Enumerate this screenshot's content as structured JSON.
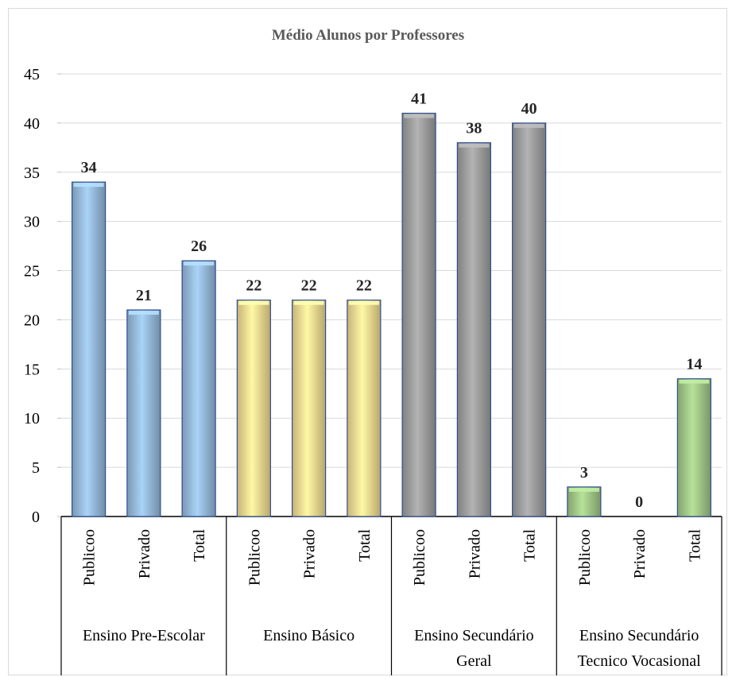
{
  "chart_data": {
    "type": "bar",
    "title": "Médio Alunos por Professores",
    "xlabel": "",
    "ylabel": "",
    "ylim": [
      0,
      45
    ],
    "yticks": [
      0,
      5,
      10,
      15,
      20,
      25,
      30,
      35,
      40,
      45
    ],
    "grid": true,
    "legend": "none",
    "groups": [
      {
        "label_lines": [
          "Ensino  Pre-Escolar"
        ],
        "color": "#9dc3e6",
        "categories": [
          "Publicoo",
          "Privado",
          "Total"
        ],
        "values": [
          34,
          21,
          26
        ]
      },
      {
        "label_lines": [
          "Ensino  Básico"
        ],
        "color": "#ffe699",
        "categories": [
          "Publicoo",
          "Privado",
          "Total"
        ],
        "values": [
          22,
          22,
          22
        ]
      },
      {
        "label_lines": [
          "Ensino  Secundário",
          "Geral"
        ],
        "color": "#a6a6a6",
        "categories": [
          "Publicoo",
          "Privado",
          "Total"
        ],
        "values": [
          41,
          38,
          40
        ]
      },
      {
        "label_lines": [
          "Ensino  Secundário",
          "Tecnico Vocasional"
        ],
        "color": "#a9d18e",
        "categories": [
          "Publicoo",
          "Privado",
          "Total"
        ],
        "values": [
          3,
          0,
          14
        ]
      }
    ]
  }
}
